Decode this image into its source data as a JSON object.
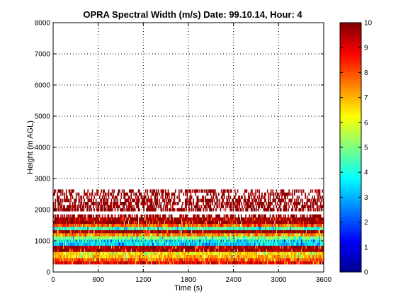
{
  "chart_data": {
    "type": "heatmap",
    "title": "OPRA Spectral Width (m/s)  Date: 99.10.14, Hour: 4",
    "xlabel": "Time (s)",
    "ylabel": "Height (m AGL)",
    "xlim": [
      0,
      3600
    ],
    "ylim": [
      0,
      8000
    ],
    "x_ticks": [
      "0",
      "600",
      "1200",
      "1800",
      "2400",
      "3000",
      "3600"
    ],
    "y_ticks": [
      "0",
      "1000",
      "2000",
      "3000",
      "4000",
      "5000",
      "6000",
      "7000",
      "8000"
    ],
    "grid": true,
    "colormap": "jet",
    "color_range": [
      0,
      10
    ],
    "colorbar_ticks": [
      "0",
      "1",
      "2",
      "3",
      "4",
      "5",
      "6",
      "7",
      "8",
      "9",
      "10"
    ],
    "height_bands": [
      {
        "height": 300,
        "value": 9.0
      },
      {
        "height": 400,
        "value": 8.0
      },
      {
        "height": 500,
        "value": 7.0
      },
      {
        "height": 600,
        "value": 6.5
      },
      {
        "height": 700,
        "value": 9.8
      },
      {
        "height": 800,
        "value": 9.8
      },
      {
        "height": 900,
        "value": 3.5
      },
      {
        "height": 1000,
        "value": 4.0
      },
      {
        "height": 1100,
        "value": 5.0
      },
      {
        "height": 1200,
        "value": 7.5
      },
      {
        "height": 1300,
        "value": 9.8
      },
      {
        "height": 1400,
        "value": 4.5
      },
      {
        "height": 1500,
        "value": 8.0
      },
      {
        "height": 1600,
        "value": 9.8
      },
      {
        "height": 1700,
        "value": 9.8
      },
      {
        "height": 1800,
        "value": 9.8
      },
      {
        "height": 2000,
        "value": 9.8
      },
      {
        "height": 2100,
        "value": 9.8
      },
      {
        "height": 2200,
        "value": 9.8
      },
      {
        "height": 2300,
        "value": 9.8
      },
      {
        "height": 2400,
        "value": 9.8
      },
      {
        "height": 2500,
        "value": 9.8
      },
      {
        "height": 2600,
        "value": 9.8
      }
    ]
  }
}
